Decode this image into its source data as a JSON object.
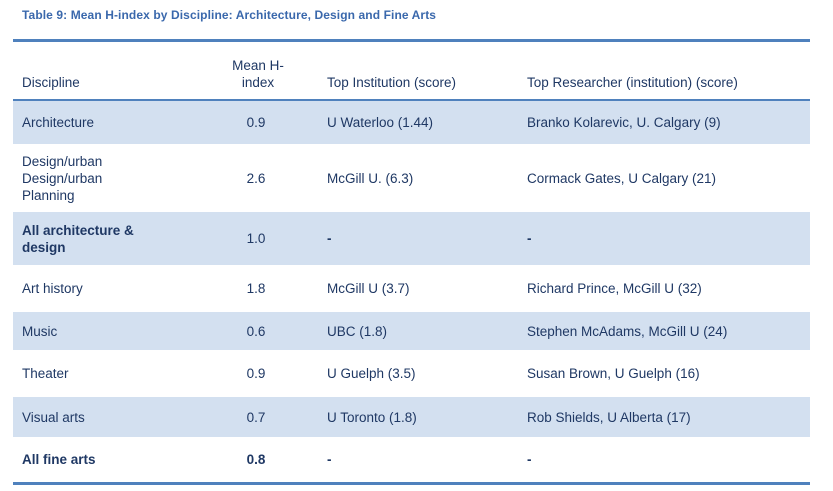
{
  "title": "Table 9: Mean H-index by Discipline: Architecture, Design and Fine Arts",
  "colors": {
    "accent_border": "#4F81BD",
    "row_shade": "#D3E0F0",
    "cell_text": "#1F3864",
    "title_text": "#3A68AC"
  },
  "table": {
    "headers": {
      "discipline": "Discipline",
      "mean_h_index": "Mean H-index",
      "top_institution": "Top Institution (score)",
      "top_researcher": "Top Researcher (institution) (score)"
    },
    "rows": [
      {
        "discipline": "Architecture",
        "mean_h_index": "0.9",
        "top_institution": "U Waterloo (1.44)",
        "top_researcher": "Branko Kolarevic, U. Calgary (9)"
      },
      {
        "discipline": "Design/urban\nDesign/urban\nPlanning",
        "mean_h_index": "2.6",
        "top_institution": "McGill U. (6.3)",
        "top_researcher": "Cormack Gates, U Calgary (21)"
      },
      {
        "discipline": "All architecture &\ndesign",
        "mean_h_index": "1.0",
        "top_institution": "-",
        "top_researcher": "-"
      },
      {
        "discipline": "Art history",
        "mean_h_index": "1.8",
        "top_institution": "McGill U (3.7)",
        "top_researcher": "Richard Prince, McGill U (32)"
      },
      {
        "discipline": "Music",
        "mean_h_index": "0.6",
        "top_institution": "UBC (1.8)",
        "top_researcher": "Stephen McAdams, McGill U (24)"
      },
      {
        "discipline": "Theater",
        "mean_h_index": "0.9",
        "top_institution": "U Guelph (3.5)",
        "top_researcher": "Susan Brown, U Guelph (16)"
      },
      {
        "discipline": "Visual arts",
        "mean_h_index": "0.7",
        "top_institution": "U Toronto (1.8)",
        "top_researcher": "Rob Shields, U Alberta (17)"
      },
      {
        "discipline": "All fine arts",
        "mean_h_index": "0.8",
        "top_institution": "-",
        "top_researcher": "-"
      }
    ]
  }
}
